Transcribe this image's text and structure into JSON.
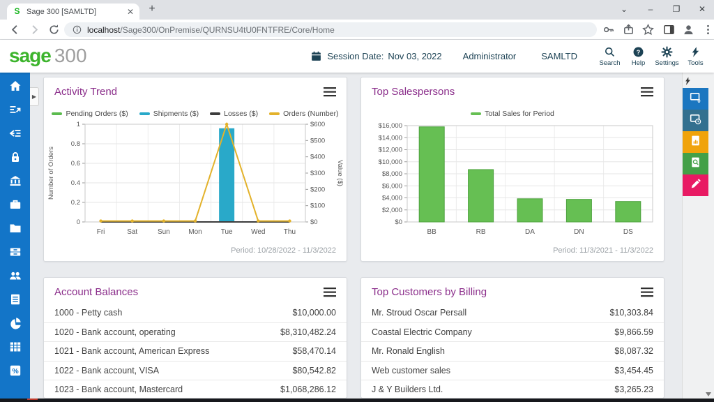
{
  "browser": {
    "tab_title": "Sage 300 [SAMLTD]",
    "url_host": "localhost",
    "url_rest": "/Sage300/OnPremise/QURNSU4tU0FNTFRE/Core/Home",
    "new_tab_label": "+"
  },
  "header": {
    "logo_primary": "sage",
    "logo_secondary": "300",
    "session_date_label": "Session Date:",
    "session_date_value": "Nov 03, 2022",
    "user": "Administrator",
    "company": "SAMLTD",
    "nav_actions": [
      {
        "id": "search",
        "label": "Search",
        "icon": "search-icon"
      },
      {
        "id": "help",
        "label": "Help",
        "icon": "help-icon"
      },
      {
        "id": "settings",
        "label": "Settings",
        "icon": "settings-icon"
      },
      {
        "id": "tools",
        "label": "Tools",
        "icon": "tools-icon"
      }
    ]
  },
  "sidebar": {
    "items": [
      {
        "icon": "home-icon"
      },
      {
        "icon": "entries-icon"
      },
      {
        "icon": "import-icon"
      },
      {
        "icon": "lock-icon"
      },
      {
        "icon": "bank-icon"
      },
      {
        "icon": "briefcase-icon"
      },
      {
        "icon": "folder-icon"
      },
      {
        "icon": "inventory-icon"
      },
      {
        "icon": "people-icon"
      },
      {
        "icon": "document-icon"
      },
      {
        "icon": "pie-chart-icon"
      },
      {
        "icon": "table-icon"
      },
      {
        "icon": "percent-icon"
      }
    ]
  },
  "right_panel": {
    "buttons": [
      {
        "name": "open-windows",
        "icon": "open-windows-icon",
        "color": "#1b76c0",
        "badge": "0"
      },
      {
        "name": "recently-used-windows",
        "icon": "recent-windows-icon",
        "color": "#33708f"
      },
      {
        "name": "reports",
        "icon": "reports-icon",
        "color": "#f0a30a"
      },
      {
        "name": "inquiries",
        "icon": "inquiries-icon",
        "color": "#43a047"
      },
      {
        "name": "notes",
        "icon": "notes-icon",
        "color": "#e81a63"
      }
    ]
  },
  "widgets": {
    "activity_trend": {
      "title": "Activity Trend"
    },
    "top_salespersons": {
      "title": "Top Salespersons"
    },
    "account_balances": {
      "title": "Account Balances",
      "rows": [
        {
          "label": "1000 - Petty cash",
          "amount": "$10,000.00"
        },
        {
          "label": "1020 - Bank account, operating",
          "amount": "$8,310,482.24"
        },
        {
          "label": "1021 - Bank account, American Express",
          "amount": "$58,470.14"
        },
        {
          "label": "1022 - Bank account, VISA",
          "amount": "$80,542.82"
        },
        {
          "label": "1023 - Bank account, Mastercard",
          "amount": "$1,068,286.12"
        }
      ]
    },
    "top_customers": {
      "title": "Top Customers by Billing",
      "rows": [
        {
          "label": "Mr. Stroud Oscar Persall",
          "amount": "$10,303.84"
        },
        {
          "label": "Coastal Electric Company",
          "amount": "$9,866.59"
        },
        {
          "label": "Mr. Ronald English",
          "amount": "$8,087.32"
        },
        {
          "label": "Web customer sales",
          "amount": "$3,454.45"
        },
        {
          "label": "J & Y Builders Ltd.",
          "amount": "$3,265.23"
        }
      ]
    }
  },
  "chart_data": [
    {
      "type": "line",
      "title": "Activity Trend",
      "categories": [
        "Fri",
        "Sat",
        "Sun",
        "Mon",
        "Tue",
        "Wed",
        "Thu"
      ],
      "series": [
        {
          "name": "Pending Orders ($)",
          "render": "line",
          "axis": "right",
          "color": "#5bbb4e",
          "values": [
            0,
            0,
            0,
            0,
            0,
            0,
            0
          ]
        },
        {
          "name": "Shipments ($)",
          "render": "bar",
          "axis": "right",
          "color": "#29a9c9",
          "values": [
            0,
            0,
            0,
            0,
            575,
            0,
            0
          ]
        },
        {
          "name": "Losses ($)",
          "render": "line",
          "axis": "right",
          "color": "#3c3c3c",
          "values": [
            0,
            0,
            0,
            0,
            0,
            0,
            0
          ]
        },
        {
          "name": "Orders (Number)",
          "render": "line",
          "axis": "left",
          "color": "#e3b22b",
          "markers": true,
          "values": [
            0.01,
            0.01,
            0.01,
            0.01,
            1,
            0.01,
            0.01
          ]
        }
      ],
      "left_axis": {
        "label": "Number of Orders",
        "min": 0,
        "max": 1,
        "step": 0.2
      },
      "right_axis": {
        "label": "Value ($)",
        "min": 0,
        "max": 600,
        "step": 100,
        "prefix": "$"
      },
      "grid": true,
      "legend_position": "top",
      "period": "Period: 10/28/2022 - 11/3/2022"
    },
    {
      "type": "bar",
      "title": "Top Salespersons",
      "categories": [
        "BB",
        "RB",
        "DA",
        "DN",
        "DS"
      ],
      "series": [
        {
          "name": "Total Sales for Period",
          "color": "#66bf53",
          "border": "#4da23e",
          "values": [
            15800,
            8700,
            3850,
            3750,
            3400
          ]
        }
      ],
      "y_axis": {
        "min": 0,
        "max": 16000,
        "step": 2000,
        "prefix": "$"
      },
      "grid": true,
      "legend_position": "top",
      "period": "Period: 11/3/2021 - 11/3/2022"
    }
  ],
  "colors": {
    "sidebar_blue": "#1375c8",
    "header_navy": "#1c4254",
    "title_purple": "#8b2e8b",
    "sage_green": "#3cb42c",
    "page_bg": "#e9ebee"
  }
}
